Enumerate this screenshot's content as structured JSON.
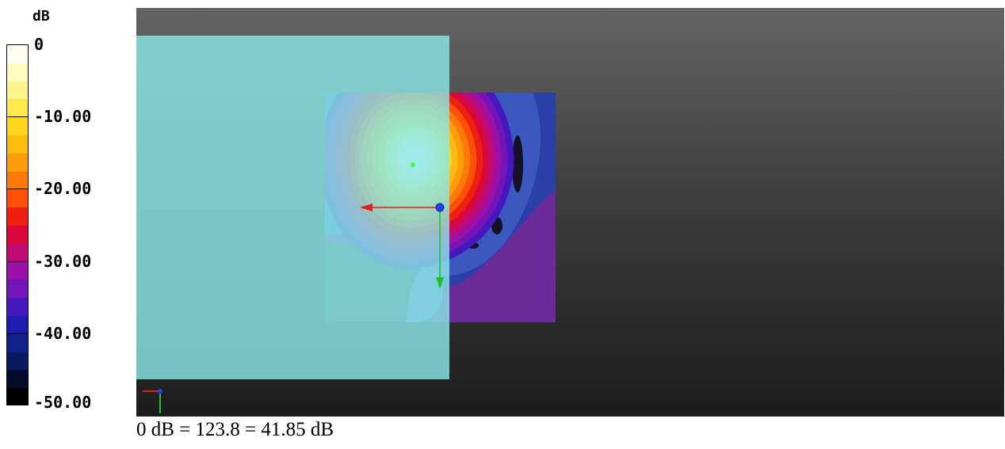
{
  "chart_data": {
    "type": "heatmap",
    "legend": {
      "unit": "dB",
      "ticks": [
        {
          "value": 0,
          "label": "0"
        },
        {
          "value": -10,
          "label": "-10.00"
        },
        {
          "value": -20,
          "label": "-20.00"
        },
        {
          "value": -30,
          "label": "-30.00"
        },
        {
          "value": -40,
          "label": "-40.00"
        },
        {
          "value": -50,
          "label": "-50.00"
        }
      ],
      "range": [
        -50,
        0
      ],
      "colors": [
        "#fffff0",
        "#fffcc0",
        "#fff48a",
        "#ffe84a",
        "#ffd61e",
        "#ffbc0e",
        "#ff9c0a",
        "#ff7a08",
        "#ff5008",
        "#f02010",
        "#d8083c",
        "#c00a78",
        "#9c10a8",
        "#7414b8",
        "#4418bc",
        "#1c1cb0",
        "#10208c",
        "#0a1a60",
        "#040c2c",
        "#000000"
      ]
    },
    "peak": {
      "value": 0,
      "unit": "dB"
    },
    "footer": "0 dB = 123.8 = 41.85 dB"
  }
}
